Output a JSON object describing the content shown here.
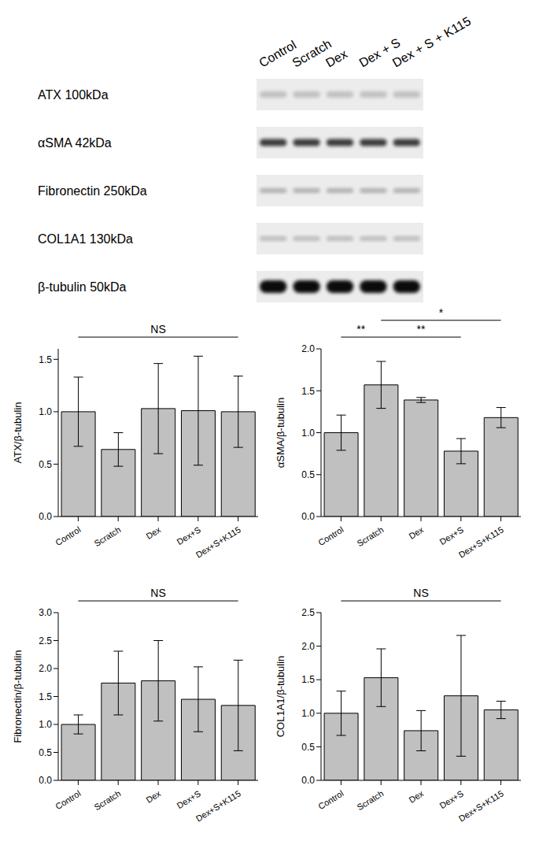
{
  "blot": {
    "lanes": [
      "Control",
      "Scratch",
      "Dex",
      "Dex + S",
      "Dex + S + K115"
    ],
    "rows": [
      "ATX 100kDa",
      "αSMA 42kDa",
      "Fibronectin 250kDa",
      "COL1A1 130kDa",
      "β-tubulin 50kDa"
    ]
  },
  "chart_data": [
    {
      "type": "bar",
      "y_label": "ATX/β-tubulin",
      "categories": [
        "Control",
        "Scratch",
        "Dex",
        "Dex+S",
        "Dex+S+K115"
      ],
      "values": [
        1.0,
        0.64,
        1.03,
        1.01,
        1.0
      ],
      "errors": [
        0.33,
        0.16,
        0.43,
        0.52,
        0.34
      ],
      "color": "#c0c0c0",
      "ylim": [
        0,
        1.6
      ],
      "yticks": [
        {
          "value": 0,
          "label": "0.0"
        },
        {
          "value": 0.5,
          "label": "0.5"
        },
        {
          "value": 1,
          "label": "1.0"
        },
        {
          "value": 1.5,
          "label": "1.5"
        }
      ],
      "grid": false,
      "significance": [
        {
          "from": "Control",
          "to": "Dex+S+K115",
          "label": "NS"
        }
      ]
    },
    {
      "type": "bar",
      "y_label": "αSMA/β-tubulin",
      "categories": [
        "Control",
        "Scratch",
        "Dex",
        "Dex+S",
        "Dex+S+K115"
      ],
      "values": [
        1.0,
        1.57,
        1.39,
        0.78,
        1.18
      ],
      "errors": [
        0.21,
        0.28,
        0.03,
        0.15,
        0.12
      ],
      "color": "#c0c0c0",
      "ylim": [
        0,
        2.0
      ],
      "yticks": [
        {
          "value": 0,
          "label": "0.0"
        },
        {
          "value": 0.5,
          "label": "0.5"
        },
        {
          "value": 1,
          "label": "1.0"
        },
        {
          "value": 1.5,
          "label": "1.5"
        },
        {
          "value": 2,
          "label": "2.0"
        }
      ],
      "grid": false,
      "significance": [
        {
          "from": "Control",
          "to": "Scratch",
          "label": "**"
        },
        {
          "from": "Scratch",
          "to": "Dex+S",
          "label": "**"
        },
        {
          "from": "Scratch",
          "to": "Dex+S+K115",
          "label": "*"
        }
      ]
    },
    {
      "type": "bar",
      "y_label": "Fibronectin/β-tubulin",
      "categories": [
        "Control",
        "Scratch",
        "Dex",
        "Dex+S",
        "Dex+S+K115"
      ],
      "values": [
        1.0,
        1.74,
        1.78,
        1.45,
        1.34
      ],
      "errors": [
        0.17,
        0.57,
        0.72,
        0.58,
        0.81
      ],
      "color": "#c0c0c0",
      "ylim": [
        0,
        3.0
      ],
      "yticks": [
        {
          "value": 0,
          "label": "0.0"
        },
        {
          "value": 0.5,
          "label": "0.5"
        },
        {
          "value": 1,
          "label": "1.0"
        },
        {
          "value": 1.5,
          "label": "1.5"
        },
        {
          "value": 2,
          "label": "2.0"
        },
        {
          "value": 2.5,
          "label": "2.5"
        },
        {
          "value": 3,
          "label": "3.0"
        }
      ],
      "grid": false,
      "significance": [
        {
          "from": "Control",
          "to": "Dex+S+K115",
          "label": "NS"
        }
      ]
    },
    {
      "type": "bar",
      "y_label": "COL1A1/β-tubulin",
      "categories": [
        "Control",
        "Scratch",
        "Dex",
        "Dex+S",
        "Dex+S+K115"
      ],
      "values": [
        1.0,
        1.53,
        0.74,
        1.26,
        1.05
      ],
      "errors": [
        0.33,
        0.43,
        0.3,
        0.9,
        0.13
      ],
      "color": "#c0c0c0",
      "ylim": [
        0,
        2.5
      ],
      "yticks": [
        {
          "value": 0,
          "label": "0.0"
        },
        {
          "value": 0.5,
          "label": "0.5"
        },
        {
          "value": 1,
          "label": "1.0"
        },
        {
          "value": 1.5,
          "label": "1.5"
        },
        {
          "value": 2,
          "label": "2.0"
        },
        {
          "value": 2.5,
          "label": "2.5"
        }
      ],
      "grid": false,
      "significance": [
        {
          "from": "Control",
          "to": "Dex+S+K115",
          "label": "NS"
        }
      ]
    }
  ]
}
